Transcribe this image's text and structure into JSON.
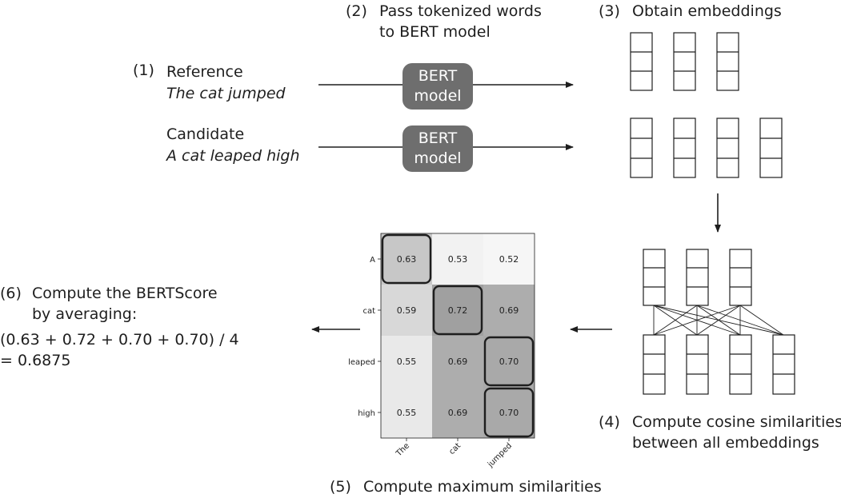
{
  "steps": {
    "s1": {
      "num": "(1)",
      "ref_label": "Reference",
      "ref_text": "The cat jumped",
      "cand_label": "Candidate",
      "cand_text": "A cat leaped high"
    },
    "s2": {
      "num": "(2)",
      "line1": "Pass tokenized words",
      "line2": "to BERT model"
    },
    "s3": {
      "num": "(3)",
      "label": "Obtain embeddings"
    },
    "s4": {
      "num": "(4)",
      "line1": "Compute cosine similarities",
      "line2": "between all embeddings"
    },
    "s5": {
      "num": "(5)",
      "label": "Compute maximum similarities"
    },
    "s6": {
      "num": "(6)",
      "line1": "Compute the BERTScore",
      "line2": "by averaging:",
      "line3": "(0.63 + 0.72 + 0.70 + 0.70) / 4",
      "line4": "= 0.6875"
    }
  },
  "bert_box": {
    "line1": "BERT",
    "line2": "model"
  },
  "heatmap": {
    "rows": [
      "A",
      "cat",
      "leaped",
      "high"
    ],
    "cols": [
      "The",
      "cat",
      "jumped"
    ],
    "values": [
      [
        0.63,
        0.53,
        0.52
      ],
      [
        0.59,
        0.72,
        0.69
      ],
      [
        0.55,
        0.69,
        0.7
      ],
      [
        0.55,
        0.69,
        0.7
      ]
    ],
    "labels": [
      [
        "0.63",
        "0.53",
        "0.52"
      ],
      [
        "0.59",
        "0.72",
        "0.69"
      ],
      [
        "0.55",
        "0.69",
        "0.70"
      ],
      [
        "0.55",
        "0.69",
        "0.70"
      ]
    ],
    "highlighted": [
      [
        0,
        0
      ],
      [
        1,
        1
      ],
      [
        2,
        2
      ],
      [
        3,
        2
      ]
    ]
  },
  "embeddings": {
    "reference_count": 3,
    "candidate_count": 4
  }
}
